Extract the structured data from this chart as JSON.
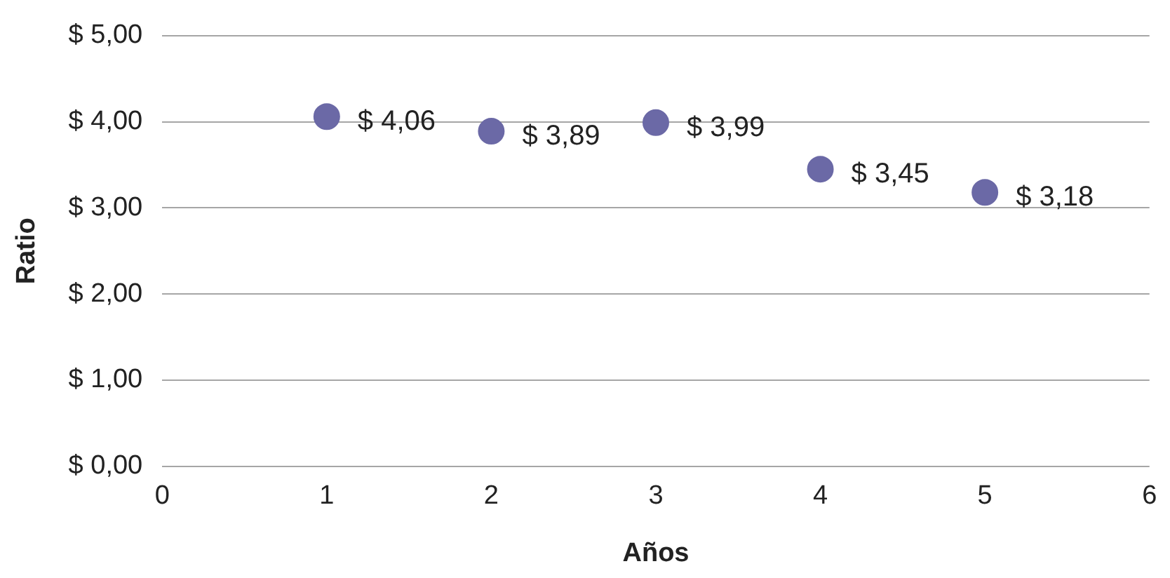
{
  "chart_data": {
    "type": "scatter",
    "xlabel": "Años",
    "ylabel": "Ratio",
    "x": [
      1,
      2,
      3,
      4,
      5
    ],
    "values": [
      4.06,
      3.89,
      3.99,
      3.45,
      3.18
    ],
    "value_labels": [
      "$ 4,06",
      "$ 3,89",
      "$ 3,99",
      "$ 3,45",
      "$ 3,18"
    ],
    "color": "#6b69a6",
    "marker": "circle",
    "xlim": [
      0,
      6
    ],
    "xticks": [
      0,
      1,
      2,
      3,
      4,
      5,
      6
    ],
    "ylim": [
      0,
      5
    ],
    "yticks": [
      {
        "value": 0,
        "label": "$ 0,00"
      },
      {
        "value": 1,
        "label": "$ 1,00"
      },
      {
        "value": 2,
        "label": "$ 2,00"
      },
      {
        "value": 3,
        "label": "$ 3,00"
      },
      {
        "value": 4,
        "label": "$ 4,00"
      },
      {
        "value": 5,
        "label": "$ 5,00"
      }
    ],
    "grid": "y"
  }
}
